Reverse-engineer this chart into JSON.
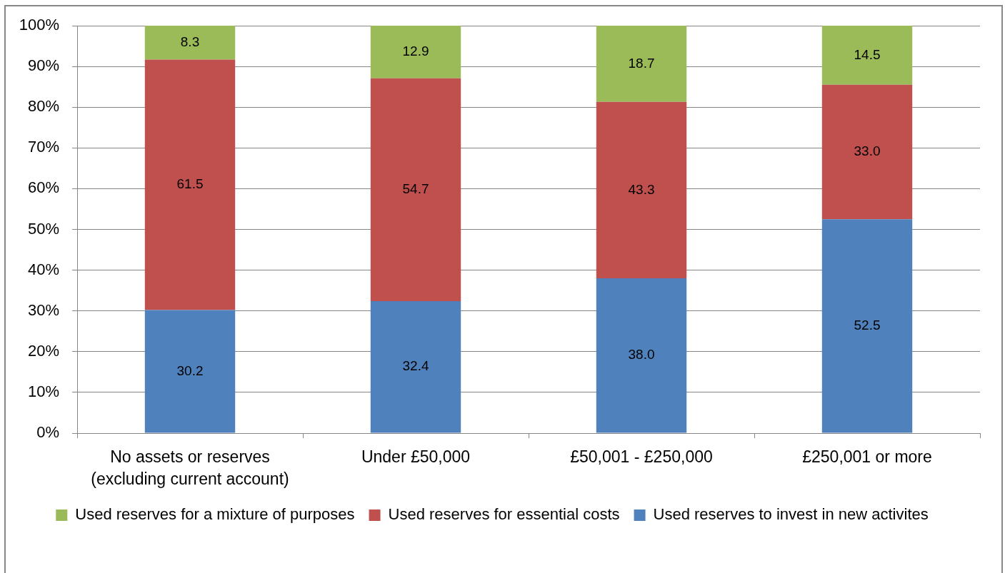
{
  "chart_data": {
    "type": "bar",
    "stacked": true,
    "categories": [
      "No assets or reserves (excluding current account)",
      "Under £50,000",
      "£50,001 - £250,000",
      "£250,001 or more"
    ],
    "series": [
      {
        "name": "Used reserves to invest in new activites",
        "color": "#4f81bd",
        "values": [
          30.2,
          32.4,
          38.0,
          52.5
        ],
        "value_labels": [
          "30.2",
          "32.4",
          "38.0",
          "52.5"
        ]
      },
      {
        "name": "Used reserves for essential costs",
        "color": "#c0504d",
        "values": [
          61.5,
          54.7,
          43.3,
          33.0
        ],
        "value_labels": [
          "61.5",
          "54.7",
          "43.3",
          "33.0"
        ]
      },
      {
        "name": "Used reserves for a mixture of purposes",
        "color": "#9bbb59",
        "values": [
          8.3,
          12.9,
          18.7,
          14.5
        ],
        "value_labels": [
          "8.3",
          "12.9",
          "18.7",
          "14.5"
        ]
      }
    ],
    "ylim": [
      0,
      100
    ],
    "yticks": [
      {
        "value": 0,
        "label": "0%"
      },
      {
        "value": 10,
        "label": "10%"
      },
      {
        "value": 20,
        "label": "20%"
      },
      {
        "value": 30,
        "label": "30%"
      },
      {
        "value": 40,
        "label": "40%"
      },
      {
        "value": 50,
        "label": "50%"
      },
      {
        "value": 60,
        "label": "60%"
      },
      {
        "value": 70,
        "label": "70%"
      },
      {
        "value": 80,
        "label": "80%"
      },
      {
        "value": 90,
        "label": "90%"
      },
      {
        "value": 100,
        "label": "100%"
      }
    ],
    "grid": "y",
    "legend": "bottom"
  }
}
